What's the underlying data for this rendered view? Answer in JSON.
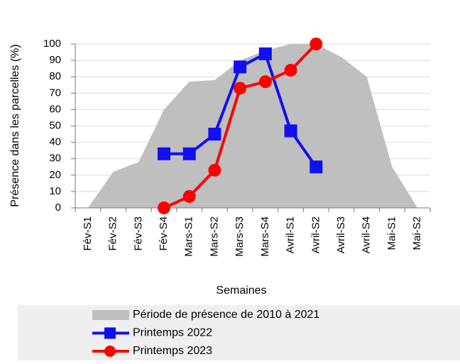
{
  "chart_data": {
    "type": "line",
    "ylabel": "Présence dans les parcelles (%)",
    "xlabel": "Semaines",
    "categories": [
      "Fév-S1",
      "Fév-S2",
      "Fév-S3",
      "Fév-S4",
      "Mars-S1",
      "Mars-S2",
      "Mars-S3",
      "Mars-S4",
      "Avril-S1",
      "Avril-S2",
      "Avril-S3",
      "Avril-S4",
      "Mai-S1",
      "Mai-S2"
    ],
    "series": [
      {
        "name": "Période de présence de 2010 à 2021",
        "type": "area",
        "color": "#bfbfbf",
        "values": [
          0,
          22,
          28,
          60,
          77,
          78,
          90,
          96,
          100,
          100,
          92,
          80,
          25,
          0
        ]
      },
      {
        "name": "Printemps 2022",
        "type": "line",
        "marker": "square",
        "color": "#1010f0",
        "values": [
          null,
          null,
          null,
          33,
          33,
          45,
          86,
          94,
          47,
          25,
          null,
          null,
          null,
          null
        ]
      },
      {
        "name": "Printemps 2023",
        "type": "line",
        "marker": "circle",
        "color": "#ff0000",
        "values": [
          null,
          null,
          null,
          0,
          7,
          23,
          73,
          77,
          84,
          100,
          null,
          null,
          null,
          null
        ]
      }
    ],
    "ylim": [
      0,
      100
    ],
    "yticks": [
      0,
      10,
      20,
      30,
      40,
      50,
      60,
      70,
      80,
      90,
      100
    ],
    "grid": true
  }
}
